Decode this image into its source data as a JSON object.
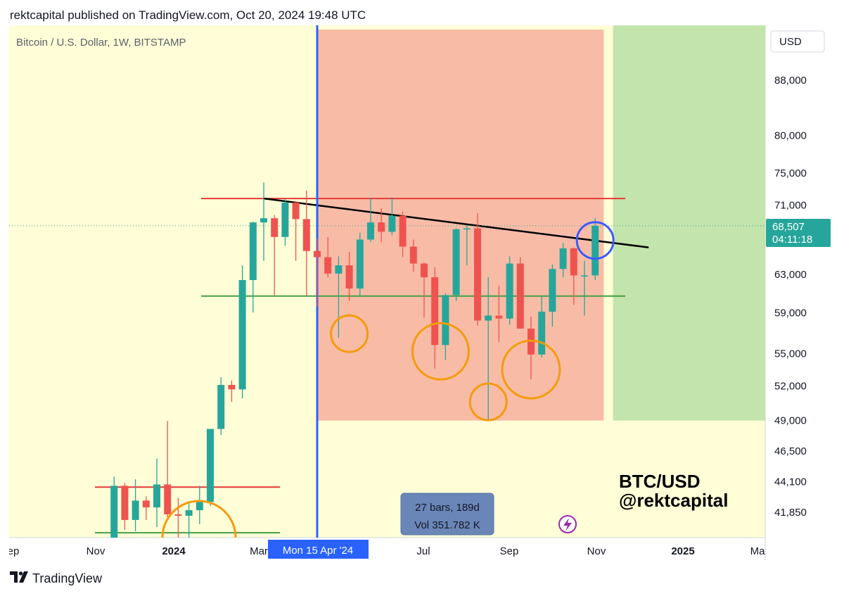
{
  "header": {
    "published_line": "rektcapital published on TradingView.com, Oct 20, 2024 19:48 UTC"
  },
  "chart": {
    "symbol_line": "Bitcoin / U.S. Dollar, 1W, BITSTAMP",
    "currency_button": "USD",
    "last_price": "68,507",
    "countdown": "04:11:18",
    "watermark_line1": "BTC/USD",
    "watermark_line2": "@rektcapital",
    "crosshair_date_label": "Mon 15 Apr '24",
    "range_info_line1": "27 bars, 189d",
    "range_info_line2": "Vol 351.782 K",
    "x_labels": [
      "ep",
      "Nov",
      "2024",
      "Mar",
      "Jul",
      "Sep",
      "Nov",
      "2025",
      "Ma"
    ],
    "y_ticks": [
      "88,000",
      "80,000",
      "75,000",
      "71,000",
      "68,507",
      "63,000",
      "59,000",
      "55,000",
      "52,000",
      "49,000",
      "46,500",
      "44,100",
      "41,850"
    ],
    "colors": {
      "background": "#fffed7",
      "bull": "#26a69a",
      "bear": "#ef5350",
      "resistance": "#e53935",
      "support": "#43a047",
      "trendline": "#000000",
      "range_zone": "#f8bca6",
      "target_zone": "#c3e4ab",
      "crosshair": "#2962ff",
      "circle_orange": "#f59b0b",
      "circle_blue": "#3d5afe"
    }
  },
  "chart_data": {
    "type": "candlestick",
    "title": "Bitcoin / U.S. Dollar, 1W, BITSTAMP",
    "scale": "log",
    "ylim": [
      39500,
      96000
    ],
    "candles": [
      {
        "date": "2023-12-04",
        "open": 38700,
        "high": 44500,
        "low": 37500,
        "close": 43800
      },
      {
        "date": "2023-12-11",
        "open": 43800,
        "high": 44000,
        "low": 40600,
        "close": 41300
      },
      {
        "date": "2023-12-18",
        "open": 41300,
        "high": 44300,
        "low": 40500,
        "close": 42700
      },
      {
        "date": "2023-12-25",
        "open": 42700,
        "high": 43000,
        "low": 41300,
        "close": 42200
      },
      {
        "date": "2024-01-01",
        "open": 42200,
        "high": 45900,
        "low": 40800,
        "close": 43900
      },
      {
        "date": "2024-01-08",
        "open": 43900,
        "high": 48970,
        "low": 41500,
        "close": 41700
      },
      {
        "date": "2024-01-15",
        "open": 41700,
        "high": 42900,
        "low": 38600,
        "close": 41600
      },
      {
        "date": "2024-01-22",
        "open": 41600,
        "high": 42500,
        "low": 38500,
        "close": 42000
      },
      {
        "date": "2024-01-29",
        "open": 42000,
        "high": 43800,
        "low": 41000,
        "close": 42600
      },
      {
        "date": "2024-02-05",
        "open": 42600,
        "high": 48200,
        "low": 42300,
        "close": 48300
      },
      {
        "date": "2024-02-12",
        "open": 48300,
        "high": 52800,
        "low": 47800,
        "close": 52100
      },
      {
        "date": "2024-02-19",
        "open": 52100,
        "high": 52500,
        "low": 50600,
        "close": 51700
      },
      {
        "date": "2024-02-26",
        "open": 51700,
        "high": 64000,
        "low": 50900,
        "close": 62400
      },
      {
        "date": "2024-03-04",
        "open": 62400,
        "high": 69000,
        "low": 59000,
        "close": 68900
      },
      {
        "date": "2024-03-11",
        "open": 68900,
        "high": 73800,
        "low": 64500,
        "close": 69400
      },
      {
        "date": "2024-03-18",
        "open": 69400,
        "high": 69800,
        "low": 60800,
        "close": 67200
      },
      {
        "date": "2024-03-25",
        "open": 67200,
        "high": 71700,
        "low": 66200,
        "close": 71300
      },
      {
        "date": "2024-04-01",
        "open": 71300,
        "high": 71500,
        "low": 64500,
        "close": 69300
      },
      {
        "date": "2024-04-08",
        "open": 69300,
        "high": 72800,
        "low": 60700,
        "close": 65600
      },
      {
        "date": "2024-04-15",
        "open": 65600,
        "high": 67000,
        "low": 59600,
        "close": 64900
      },
      {
        "date": "2024-04-22",
        "open": 64900,
        "high": 67200,
        "low": 62700,
        "close": 63100
      },
      {
        "date": "2024-04-29",
        "open": 63100,
        "high": 65000,
        "low": 56500,
        "close": 64000
      },
      {
        "date": "2024-05-06",
        "open": 64000,
        "high": 65500,
        "low": 60200,
        "close": 61500
      },
      {
        "date": "2024-05-13",
        "open": 61500,
        "high": 67700,
        "low": 60600,
        "close": 66900
      },
      {
        "date": "2024-05-20",
        "open": 66900,
        "high": 71900,
        "low": 66600,
        "close": 68900
      },
      {
        "date": "2024-05-27",
        "open": 68900,
        "high": 70600,
        "low": 66600,
        "close": 67800
      },
      {
        "date": "2024-06-03",
        "open": 67800,
        "high": 71950,
        "low": 67400,
        "close": 69700
      },
      {
        "date": "2024-06-10",
        "open": 69700,
        "high": 70200,
        "low": 64900,
        "close": 66100
      },
      {
        "date": "2024-06-17",
        "open": 66100,
        "high": 66900,
        "low": 63300,
        "close": 64200
      },
      {
        "date": "2024-06-24",
        "open": 64200,
        "high": 64300,
        "low": 58500,
        "close": 62700
      },
      {
        "date": "2024-07-01",
        "open": 62700,
        "high": 63800,
        "low": 53600,
        "close": 55800
      },
      {
        "date": "2024-07-08",
        "open": 55800,
        "high": 61000,
        "low": 54400,
        "close": 60800
      },
      {
        "date": "2024-07-15",
        "open": 60800,
        "high": 68200,
        "low": 60200,
        "close": 68100
      },
      {
        "date": "2024-07-22",
        "open": 68100,
        "high": 68600,
        "low": 64000,
        "close": 68200
      },
      {
        "date": "2024-07-29",
        "open": 68200,
        "high": 70000,
        "low": 57700,
        "close": 58200
      },
      {
        "date": "2024-08-05",
        "open": 58200,
        "high": 62700,
        "low": 49100,
        "close": 58700
      },
      {
        "date": "2024-08-12",
        "open": 58700,
        "high": 61800,
        "low": 56100,
        "close": 58400
      },
      {
        "date": "2024-08-19",
        "open": 58400,
        "high": 65000,
        "low": 57800,
        "close": 64200
      },
      {
        "date": "2024-08-26",
        "open": 64200,
        "high": 64900,
        "low": 57500,
        "close": 57400
      },
      {
        "date": "2024-09-02",
        "open": 57400,
        "high": 58600,
        "low": 52600,
        "close": 54900
      },
      {
        "date": "2024-09-09",
        "open": 54900,
        "high": 60700,
        "low": 54600,
        "close": 59100
      },
      {
        "date": "2024-09-16",
        "open": 59100,
        "high": 64100,
        "low": 57600,
        "close": 63600
      },
      {
        "date": "2024-09-23",
        "open": 63600,
        "high": 66500,
        "low": 62700,
        "close": 65900
      },
      {
        "date": "2024-09-30",
        "open": 65900,
        "high": 66000,
        "low": 59800,
        "close": 62900
      },
      {
        "date": "2024-10-07",
        "open": 62900,
        "high": 64500,
        "low": 58700,
        "close": 62900
      },
      {
        "date": "2024-10-14",
        "open": 62900,
        "high": 69400,
        "low": 62400,
        "close": 68507
      }
    ],
    "resistance_level": 71800,
    "support_level": 60700,
    "trendline": [
      {
        "date": "2024-03-11",
        "value": 71800
      },
      {
        "date": "2024-11-18",
        "value": 66000
      }
    ],
    "range_zone": {
      "start": "2024-04-15",
      "end": "2024-10-21",
      "high": 95500,
      "low": 49000
    },
    "target_zone": {
      "start": "2024-10-28",
      "end": "2025-04-01",
      "high": 95500,
      "low": 49000
    },
    "lower_range": {
      "resistance": 43700,
      "support": 40400
    },
    "circled_lows": [
      "2024-05-06",
      "2024-07-08",
      "2024-08-05",
      "2024-09-02"
    ],
    "circled_breakout": "2024-10-14"
  }
}
